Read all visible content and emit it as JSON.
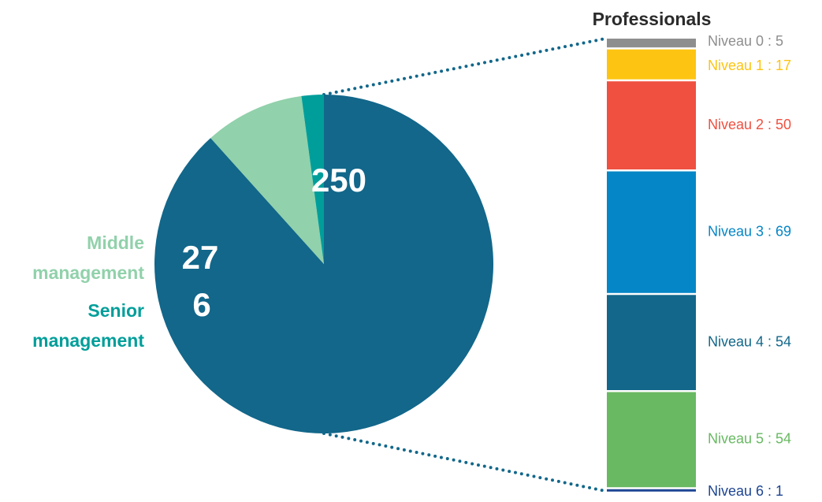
{
  "chart_data": [
    {
      "type": "pie",
      "slices": [
        {
          "value": 250,
          "value_label": "250",
          "label_lines": [],
          "color": "#12678a"
        },
        {
          "value": 27,
          "value_label": "27",
          "label_lines": [
            "Middle",
            "management"
          ],
          "color": "#91d1ab"
        },
        {
          "value": 6,
          "value_label": "6",
          "label_lines": [
            "Senior",
            "management"
          ],
          "color": "#009e9a"
        }
      ],
      "connector_color": "#12678a"
    },
    {
      "type": "bar",
      "stacked": true,
      "title": "Professionals",
      "total": 250,
      "segments": [
        {
          "label": "Niveau 0 : 5",
          "value": 5,
          "color": "#8e8e8e"
        },
        {
          "label": "Niveau 1 : 17",
          "value": 17,
          "color": "#fdc412"
        },
        {
          "label": "Niveau 2 : 50",
          "value": 50,
          "color": "#ef5040"
        },
        {
          "label": "Niveau 3 : 69",
          "value": 69,
          "color": "#0586c6"
        },
        {
          "label": "Niveau 4 : 54",
          "value": 54,
          "color": "#12678a"
        },
        {
          "label": "Niveau 5 : 54",
          "value": 54,
          "color": "#68b962"
        },
        {
          "label": "Niveau 6 : 1",
          "value": 1,
          "color": "#1d4592"
        }
      ]
    }
  ]
}
